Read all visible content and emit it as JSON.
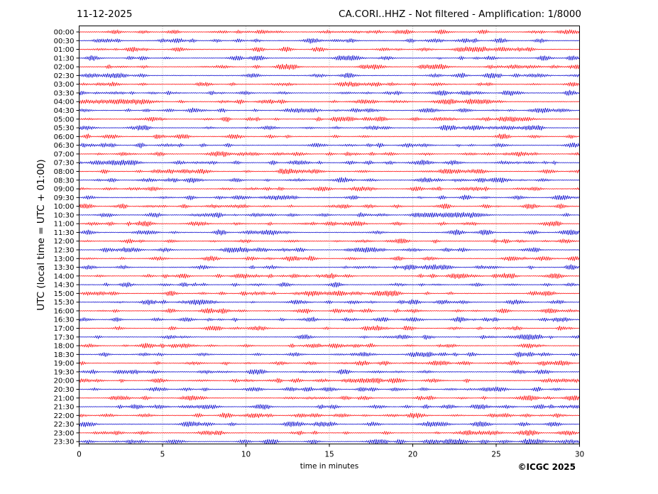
{
  "header": {
    "date": "11-12-2025",
    "title": "CA.CORI..HHZ - Not filtered - Amplification: 1/8000"
  },
  "footer": {
    "copyright": "©ICGC 2025"
  },
  "chart_data": {
    "type": "line",
    "xlabel": "time in minutes",
    "ylabel": "UTC (local time = UTC + 01:00)",
    "xlim": [
      0,
      30
    ],
    "xticks": [
      0,
      5,
      10,
      15,
      20,
      25,
      30
    ],
    "row_labels": [
      "00:00",
      "00:30",
      "01:00",
      "01:30",
      "02:00",
      "02:30",
      "03:00",
      "03:30",
      "04:00",
      "04:30",
      "05:00",
      "05:30",
      "06:00",
      "06:30",
      "07:00",
      "07:30",
      "08:00",
      "08:30",
      "09:00",
      "09:30",
      "10:00",
      "10:30",
      "11:00",
      "11:30",
      "12:00",
      "12:30",
      "13:00",
      "13:30",
      "14:00",
      "14:30",
      "15:00",
      "15:30",
      "16:00",
      "16:30",
      "17:00",
      "17:30",
      "18:00",
      "18:30",
      "19:00",
      "19:30",
      "20:00",
      "20:30",
      "21:00",
      "21:30",
      "22:00",
      "22:30",
      "23:00",
      "23:30"
    ],
    "trace_colors": [
      "#ff0000",
      "#0000cc"
    ],
    "grid": "vertical dotted at x ticks"
  }
}
